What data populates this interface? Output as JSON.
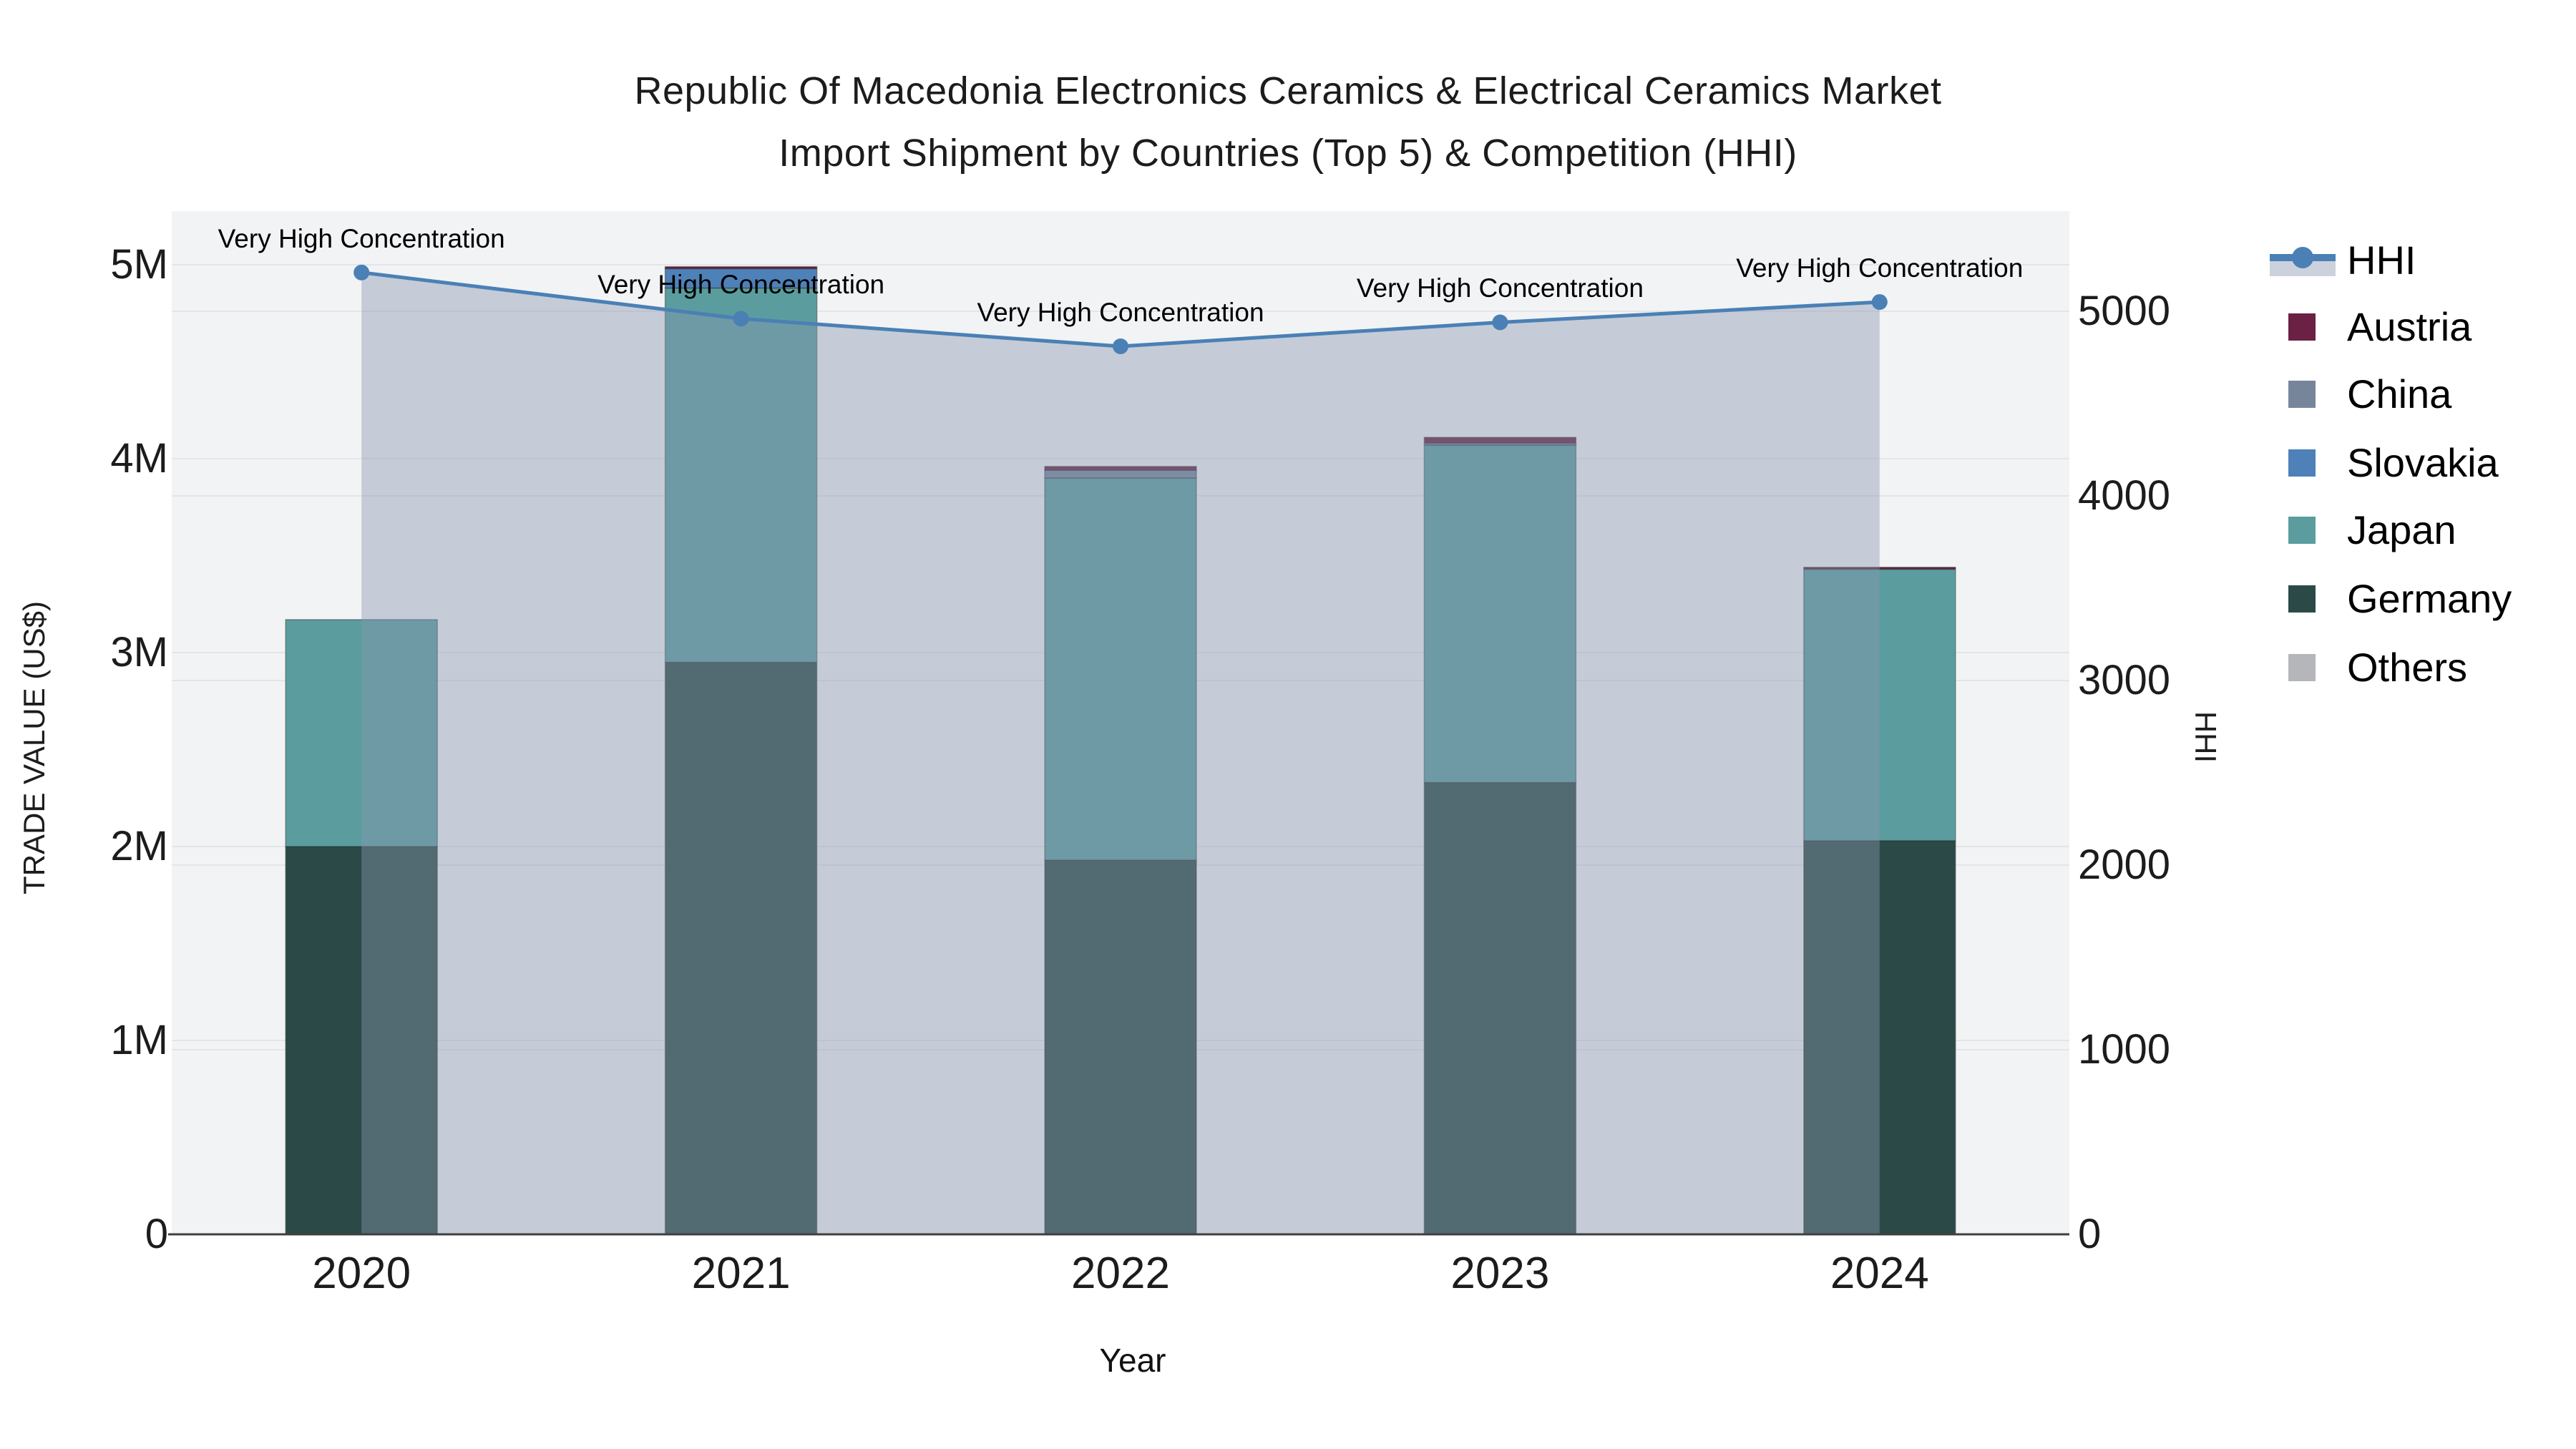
{
  "title": {
    "line1": "Republic Of Macedonia Electronics Ceramics & Electrical Ceramics Market",
    "line2": "Import Shipment by Countries (Top 5) & Competition (HHI)"
  },
  "axes": {
    "y_left": {
      "title": "TRADE VALUE (US$)",
      "ticks": [
        "0",
        "1M",
        "2M",
        "3M",
        "4M",
        "5M"
      ]
    },
    "y_right": {
      "title": "HHI",
      "ticks": [
        "0",
        "1000",
        "2000",
        "3000",
        "4000",
        "5000"
      ]
    },
    "x": {
      "title": "Year"
    }
  },
  "legend": {
    "items": [
      {
        "label": "HHI",
        "type": "line",
        "color": "#4a80b5"
      },
      {
        "label": "Austria",
        "type": "box",
        "color": "#6b2143"
      },
      {
        "label": "China",
        "type": "box",
        "color": "#76859a"
      },
      {
        "label": "Slovakia",
        "type": "box",
        "color": "#4e81b8"
      },
      {
        "label": "Japan",
        "type": "box",
        "color": "#5b9d9e"
      },
      {
        "label": "Germany",
        "type": "box",
        "color": "#2b4a47"
      },
      {
        "label": "Others",
        "type": "box",
        "color": "#b4b6b9"
      }
    ]
  },
  "annotation_label": "Very High Concentration",
  "chart_data": {
    "type": "bar",
    "subtype": "stacked-bars-with-line",
    "categories": [
      "2020",
      "2021",
      "2022",
      "2023",
      "2024"
    ],
    "series": [
      {
        "name": "Germany",
        "color": "#2b4a47",
        "values": [
          2000000,
          2950000,
          1930000,
          2330000,
          2030000
        ]
      },
      {
        "name": "Japan",
        "color": "#5b9d9e",
        "values": [
          1170000,
          1930000,
          1970000,
          1740000,
          1400000
        ]
      },
      {
        "name": "Slovakia",
        "color": "#4e81b8",
        "values": [
          0,
          100000,
          0,
          0,
          0
        ]
      },
      {
        "name": "China",
        "color": "#76859a",
        "values": [
          0,
          0,
          40000,
          10000,
          0
        ]
      },
      {
        "name": "Austria",
        "color": "#6b2143",
        "values": [
          0,
          10000,
          20000,
          30000,
          10000
        ]
      },
      {
        "name": "Others",
        "color": "#b4b6b9",
        "values": [
          0,
          0,
          0,
          0,
          0
        ]
      }
    ],
    "line_series": {
      "name": "HHI",
      "color": "#4a80b5",
      "fill_color": "rgba(136,151,175,0.42)",
      "values": [
        5210,
        4960,
        4810,
        4940,
        5050
      ],
      "annotations": [
        "Very High Concentration",
        "Very High Concentration",
        "Very High Concentration",
        "Very High Concentration",
        "Very High Concentration"
      ]
    },
    "title": "Republic Of Macedonia Electronics Ceramics & Electrical Ceramics Market Import Shipment by Countries (Top 5) & Competition (HHI)",
    "xlabel": "Year",
    "ylabel_left": "TRADE VALUE (US$)",
    "ylabel_right": "HHI",
    "ylim_left": [
      0,
      5280000
    ],
    "ylim_right": [
      0,
      5545
    ],
    "left_tick_values": [
      0,
      1000000,
      2000000,
      3000000,
      4000000,
      5000000
    ],
    "right_tick_values": [
      0,
      1000,
      2000,
      3000,
      4000,
      5000
    ],
    "grid": true,
    "legend_position": "right",
    "plot_bg": "#f2f3f4",
    "grid_color": "#e3e5e9",
    "axis_line_color": "#3f3f3f"
  }
}
